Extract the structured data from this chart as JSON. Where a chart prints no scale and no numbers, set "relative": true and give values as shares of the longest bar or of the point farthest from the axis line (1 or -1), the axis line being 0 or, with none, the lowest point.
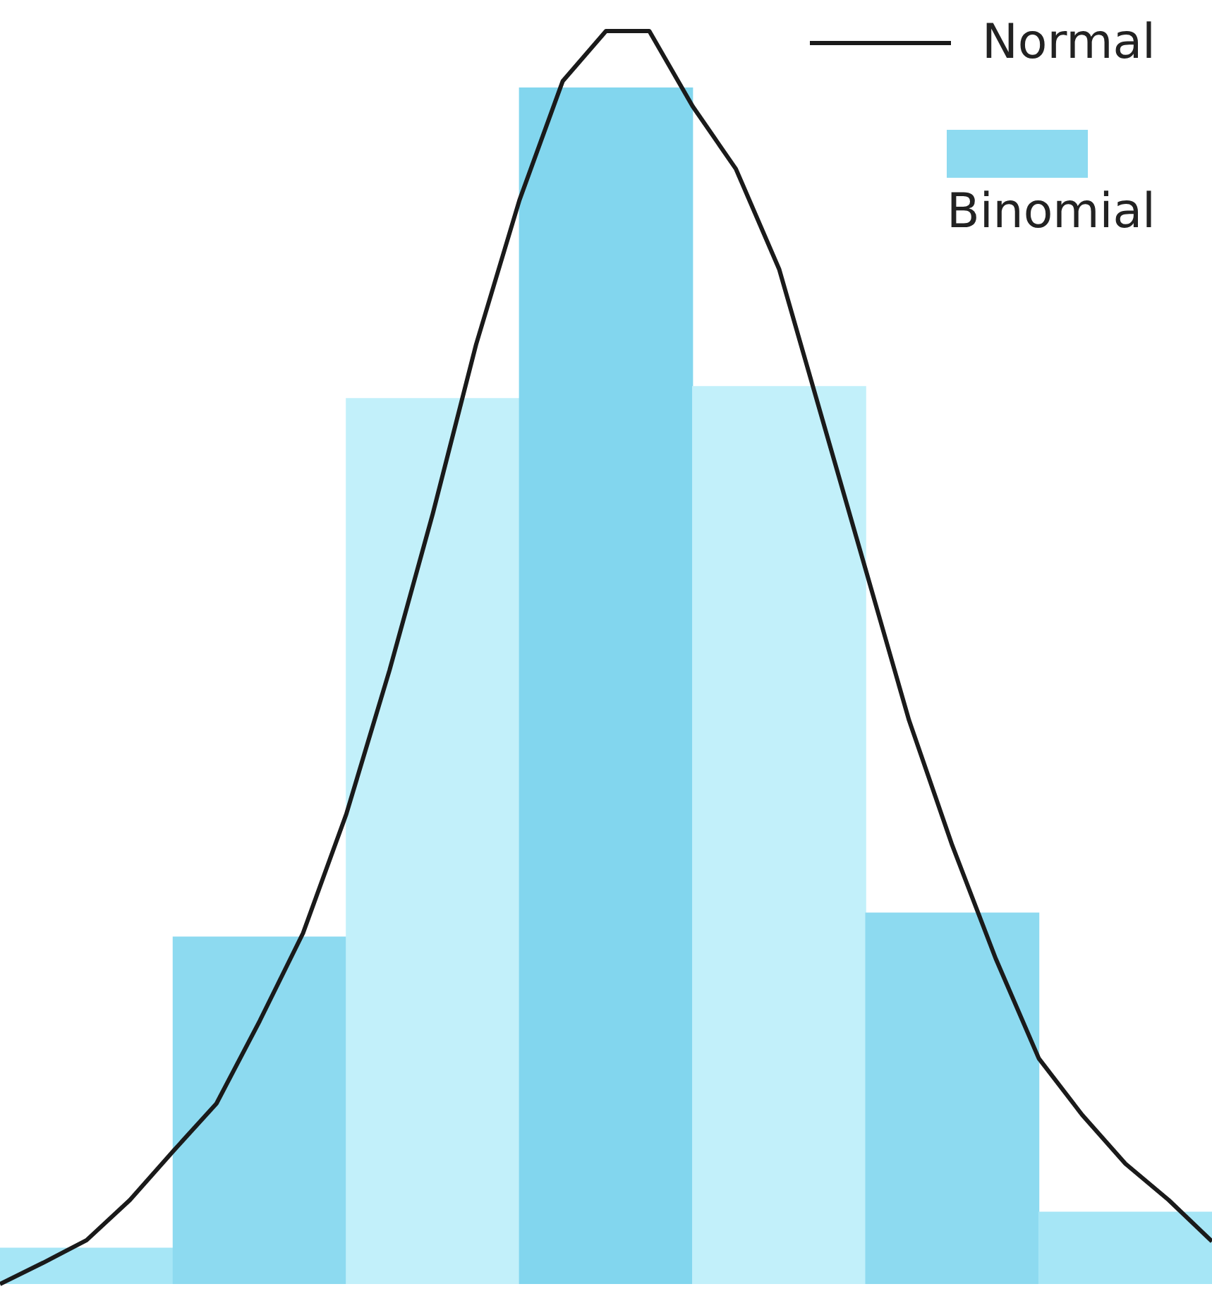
{
  "chart_data": [
    {
      "type": "bar",
      "relative": true,
      "legend": "top right",
      "categories": [
        null,
        null,
        null,
        null,
        null,
        null,
        null
      ],
      "series": [
        {
          "name": "Binomial",
          "color": "#8ddaf0",
          "colors": [
            "#a6e6f6",
            "#8ddaf0",
            "#c2f0fa",
            "#82d6ee",
            "#c2f0fa",
            "#8ddaf0",
            "#a6e6f6"
          ],
          "values": [
            0.03,
            0.29,
            0.74,
            1,
            0.75,
            0.31,
            0.06
          ]
        }
      ]
    },
    {
      "type": "line",
      "relative": true,
      "legend": "top right",
      "marker": "none",
      "categories": [
        null,
        null,
        null,
        null,
        null,
        null,
        null,
        null,
        null,
        null,
        null,
        null,
        null,
        null,
        null,
        null,
        null,
        null,
        null,
        null,
        null,
        null,
        null,
        null,
        null,
        null,
        null,
        null,
        null
      ],
      "series": [
        {
          "name": "Normal",
          "color": "#1a1a1a",
          "values": [
            0,
            0.017,
            0.035,
            0.067,
            0.106,
            0.144,
            0.21,
            0.28,
            0.375,
            0.49,
            0.615,
            0.75,
            0.865,
            0.96,
            1,
            1,
            0.94,
            0.89,
            0.81,
            0.69,
            0.57,
            0.45,
            0.35,
            0.26,
            0.18,
            0.135,
            0.096,
            0.067,
            0.034
          ]
        }
      ]
    }
  ]
}
